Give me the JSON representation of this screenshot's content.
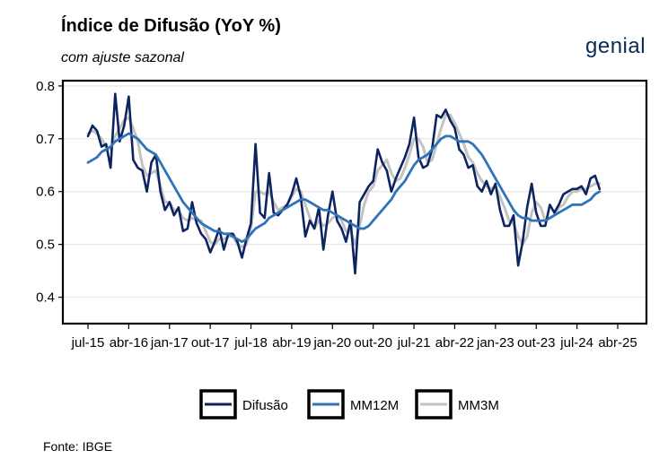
{
  "header": {
    "title": "Índice de Difusão (YoY %)",
    "subtitle": "com ajuste sazonal",
    "logo_text": "genial",
    "source": "Fonte: IBGE"
  },
  "colors": {
    "Difusão": "#0d2461",
    "MM12M": "#2f73b8",
    "MM3M": "#c3c3c3",
    "grid": "#e6e6e6",
    "frame": "#000000"
  },
  "chart_data": {
    "type": "line",
    "title": "Índice de Difusão (YoY %)",
    "subtitle": "com ajuste sazonal",
    "xlabel": "",
    "ylabel": "",
    "ylim": [
      0.35,
      0.81
    ],
    "yticks": [
      0.4,
      0.5,
      0.6,
      0.7,
      0.8
    ],
    "x_start": "2015-07",
    "x_end": "2025-04",
    "xticks": [
      "jul-15",
      "abr-16",
      "jan-17",
      "out-17",
      "jul-18",
      "abr-19",
      "jan-20",
      "out-20",
      "jul-21",
      "abr-22",
      "jan-23",
      "out-23",
      "jul-24",
      "abr-25"
    ],
    "grid": true,
    "legend_position": "bottom",
    "series": [
      {
        "name": "Difusão",
        "values": [
          0.705,
          0.725,
          0.715,
          0.685,
          0.69,
          0.645,
          0.785,
          0.695,
          0.725,
          0.78,
          0.66,
          0.645,
          0.64,
          0.6,
          0.655,
          0.67,
          0.6,
          0.565,
          0.58,
          0.555,
          0.57,
          0.525,
          0.53,
          0.58,
          0.54,
          0.52,
          0.51,
          0.485,
          0.505,
          0.53,
          0.49,
          0.52,
          0.52,
          0.505,
          0.475,
          0.51,
          0.54,
          0.69,
          0.56,
          0.55,
          0.635,
          0.56,
          0.555,
          0.565,
          0.575,
          0.595,
          0.625,
          0.59,
          0.515,
          0.545,
          0.53,
          0.57,
          0.49,
          0.555,
          0.6,
          0.545,
          0.53,
          0.505,
          0.545,
          0.445,
          0.58,
          0.595,
          0.61,
          0.62,
          0.68,
          0.655,
          0.64,
          0.6,
          0.625,
          0.645,
          0.665,
          0.69,
          0.74,
          0.665,
          0.645,
          0.65,
          0.68,
          0.745,
          0.74,
          0.755,
          0.735,
          0.72,
          0.68,
          0.67,
          0.645,
          0.65,
          0.61,
          0.6,
          0.62,
          0.595,
          0.615,
          0.565,
          0.535,
          0.535,
          0.555,
          0.46,
          0.505,
          0.57,
          0.615,
          0.56,
          0.535,
          0.535,
          0.575,
          0.56,
          0.575,
          0.595,
          0.6,
          0.605,
          0.605,
          0.61,
          0.595,
          0.625,
          0.63,
          0.605
        ]
      },
      {
        "name": "MM12M",
        "values": [
          0.655,
          0.66,
          0.665,
          0.675,
          0.68,
          0.685,
          0.695,
          0.7,
          0.705,
          0.71,
          0.705,
          0.7,
          0.69,
          0.68,
          0.675,
          0.67,
          0.655,
          0.64,
          0.625,
          0.61,
          0.595,
          0.58,
          0.57,
          0.56,
          0.55,
          0.54,
          0.535,
          0.53,
          0.525,
          0.525,
          0.52,
          0.52,
          0.515,
          0.51,
          0.505,
          0.51,
          0.52,
          0.53,
          0.535,
          0.54,
          0.55,
          0.555,
          0.56,
          0.565,
          0.57,
          0.575,
          0.58,
          0.585,
          0.585,
          0.58,
          0.575,
          0.57,
          0.565,
          0.565,
          0.56,
          0.555,
          0.55,
          0.545,
          0.54,
          0.535,
          0.53,
          0.53,
          0.535,
          0.545,
          0.555,
          0.565,
          0.575,
          0.585,
          0.6,
          0.61,
          0.62,
          0.635,
          0.65,
          0.66,
          0.665,
          0.67,
          0.68,
          0.69,
          0.7,
          0.705,
          0.705,
          0.7,
          0.695,
          0.695,
          0.695,
          0.69,
          0.68,
          0.67,
          0.655,
          0.64,
          0.625,
          0.61,
          0.595,
          0.58,
          0.565,
          0.555,
          0.55,
          0.55,
          0.545,
          0.545,
          0.545,
          0.545,
          0.55,
          0.555,
          0.56,
          0.565,
          0.57,
          0.575,
          0.575,
          0.575,
          0.58,
          0.585,
          0.595,
          0.6
        ]
      },
      {
        "name": "MM3M",
        "values": [
          0.71,
          0.715,
          0.71,
          0.7,
          0.685,
          0.68,
          0.705,
          0.72,
          0.735,
          0.74,
          0.72,
          0.695,
          0.65,
          0.63,
          0.635,
          0.64,
          0.61,
          0.58,
          0.58,
          0.565,
          0.565,
          0.55,
          0.545,
          0.55,
          0.545,
          0.545,
          0.525,
          0.505,
          0.5,
          0.51,
          0.51,
          0.515,
          0.515,
          0.5,
          0.495,
          0.5,
          0.53,
          0.6,
          0.6,
          0.595,
          0.6,
          0.58,
          0.565,
          0.57,
          0.575,
          0.59,
          0.605,
          0.6,
          0.575,
          0.55,
          0.53,
          0.545,
          0.535,
          0.54,
          0.55,
          0.555,
          0.545,
          0.525,
          0.525,
          0.5,
          0.535,
          0.575,
          0.6,
          0.61,
          0.64,
          0.65,
          0.66,
          0.635,
          0.62,
          0.625,
          0.645,
          0.67,
          0.7,
          0.7,
          0.685,
          0.655,
          0.66,
          0.69,
          0.72,
          0.745,
          0.745,
          0.73,
          0.71,
          0.69,
          0.665,
          0.655,
          0.635,
          0.62,
          0.61,
          0.605,
          0.61,
          0.59,
          0.57,
          0.545,
          0.54,
          0.515,
          0.5,
          0.515,
          0.56,
          0.58,
          0.57,
          0.545,
          0.55,
          0.555,
          0.57,
          0.575,
          0.59,
          0.6,
          0.6,
          0.605,
          0.605,
          0.61,
          0.615,
          0.615
        ]
      }
    ]
  }
}
